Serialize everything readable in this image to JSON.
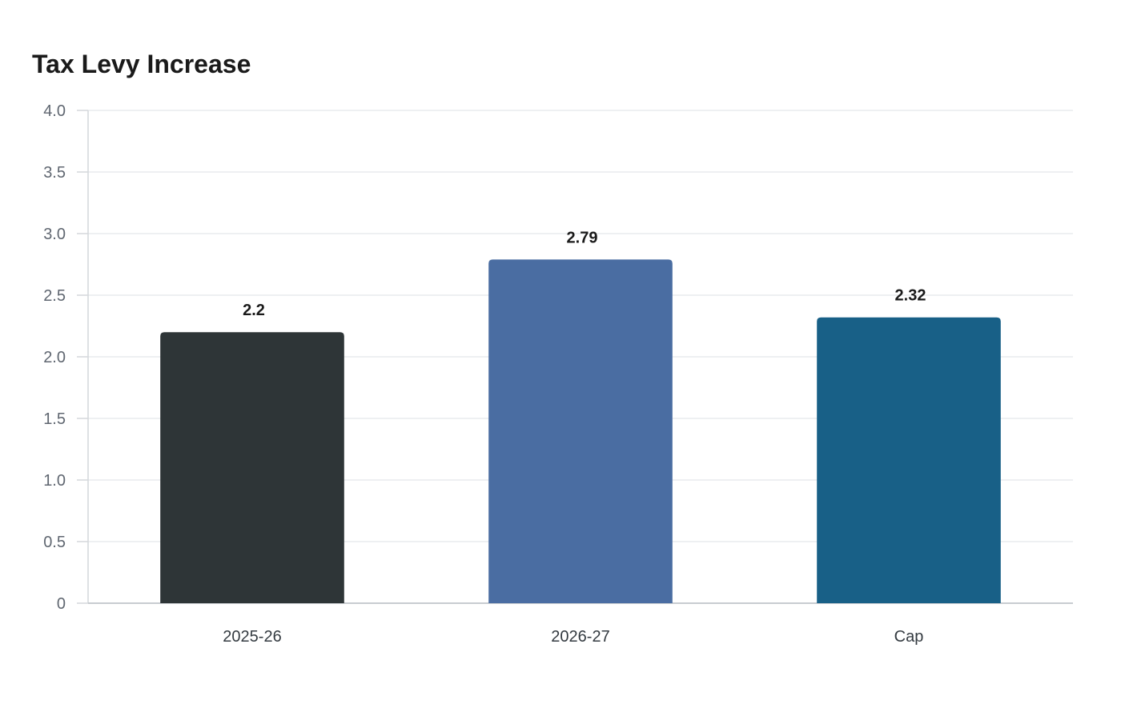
{
  "chart_data": {
    "type": "bar",
    "title": "Tax Levy Increase",
    "xlabel": "",
    "ylabel": "",
    "categories": [
      "2025-26",
      "2026-27",
      "Cap"
    ],
    "values": [
      2.2,
      2.79,
      2.32
    ],
    "value_labels": [
      "2.2",
      "2.79",
      "2.32"
    ],
    "colors": [
      "#2e3537",
      "#4a6da2",
      "#186087"
    ],
    "ylim": [
      0,
      4.0
    ],
    "yticks": [
      0,
      0.5,
      1.0,
      1.5,
      2.0,
      2.5,
      3.0,
      3.5,
      4.0
    ],
    "ytick_labels": [
      "0",
      "0.5",
      "1.0",
      "1.5",
      "2.0",
      "2.5",
      "3.0",
      "3.5",
      "4.0"
    ],
    "grid": true,
    "legend": "none"
  }
}
